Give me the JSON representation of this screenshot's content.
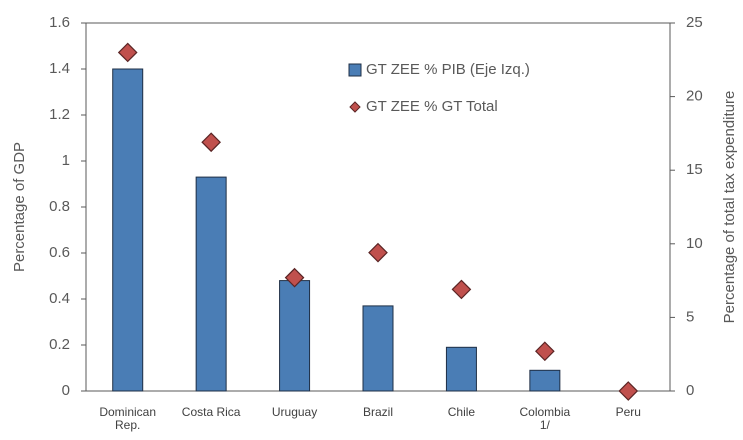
{
  "chart_data": {
    "type": "bar",
    "categories": [
      "Dominican Rep.",
      "Costa Rica",
      "Uruguay",
      "Brazil",
      "Chile",
      "Colombia 1/",
      "Peru"
    ],
    "series": [
      {
        "name": "GT ZEE % PIB (Eje Izq.)",
        "color": "#4a7db5",
        "type": "bar",
        "values": [
          1.4,
          0.93,
          0.48,
          0.37,
          0.19,
          0.09,
          0
        ]
      },
      {
        "name": "GT ZEE % GT Total",
        "color": "#c0504d",
        "type": "scatter",
        "axis": "y2",
        "values": [
          23,
          16.9,
          7.7,
          9.4,
          6.9,
          2.7,
          0
        ]
      }
    ],
    "ylabel": "Percentage of GDP",
    "y2label": "Percentage of total tax expenditure",
    "ylim": [
      0,
      1.6
    ],
    "yticks": [
      0,
      0.2,
      0.4,
      0.6,
      0.8,
      1,
      1.2,
      1.4,
      1.6
    ],
    "y2lim": [
      0,
      25
    ],
    "y2ticks": [
      0,
      5,
      10,
      15,
      20,
      25
    ],
    "grid": false
  }
}
